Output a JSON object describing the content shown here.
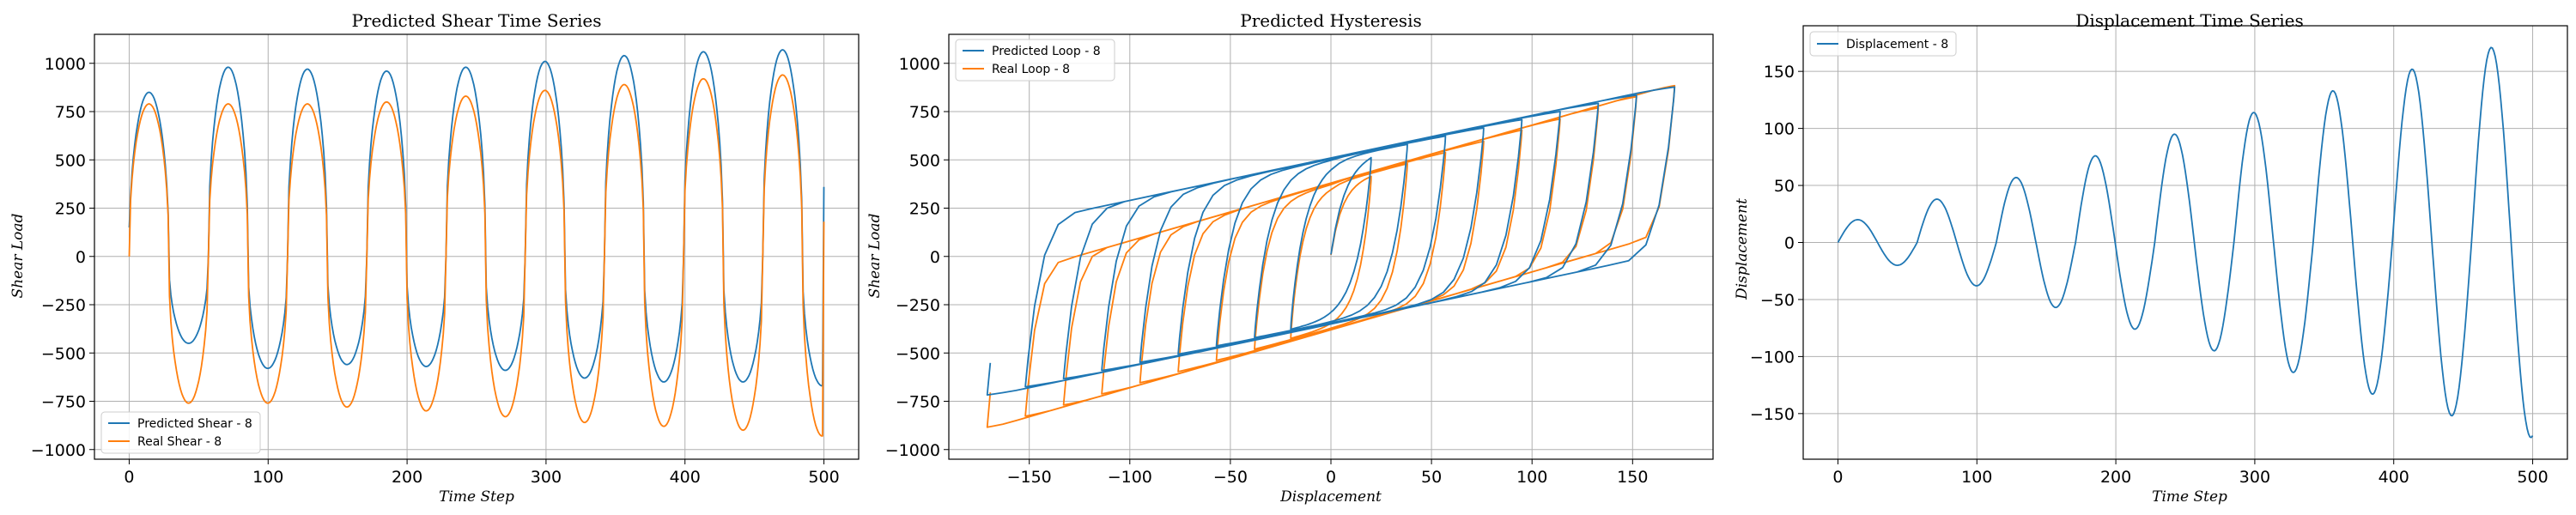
{
  "chart_data": [
    {
      "type": "line",
      "title": "Predicted Shear Time Series",
      "xlabel": "Time Step",
      "ylabel": "Shear Load",
      "xlim": [
        -25,
        525
      ],
      "ylim": [
        -1050,
        1150
      ],
      "xticks": [
        0,
        100,
        200,
        300,
        400,
        500
      ],
      "yticks": [
        -1000,
        -750,
        -500,
        -250,
        0,
        250,
        500,
        750,
        1000
      ],
      "grid": true,
      "legend_position": "lower-left",
      "series": [
        {
          "name": "Predicted Shear - 8",
          "color": "#1f77b4",
          "amplitudes": [
            850,
            980,
            970,
            960,
            980,
            1010,
            1040,
            1060,
            1070
          ],
          "troughs": [
            -450,
            -580,
            -560,
            -570,
            -590,
            -630,
            -650,
            -650,
            -670
          ],
          "start": 150,
          "end": 360
        },
        {
          "name": "Real Shear - 8",
          "color": "#ff7f0e",
          "amplitudes": [
            790,
            790,
            790,
            800,
            830,
            860,
            890,
            920,
            940
          ],
          "troughs": [
            -760,
            -760,
            -780,
            -800,
            -830,
            -860,
            -880,
            -900,
            -930
          ],
          "start": 0,
          "end": 180
        }
      ]
    },
    {
      "type": "line",
      "title": "Predicted Hysteresis",
      "xlabel": "Displacement",
      "ylabel": "Shear Load",
      "xlim": [
        -190,
        190
      ],
      "ylim": [
        -1050,
        1150
      ],
      "xticks": [
        -150,
        -100,
        -50,
        0,
        50,
        100,
        150
      ],
      "yticks": [
        -1000,
        -750,
        -500,
        -250,
        0,
        250,
        500,
        750,
        1000
      ],
      "grid": true,
      "legend_position": "top-left",
      "series": [
        {
          "name": "Predicted Loop - 8",
          "color": "#1f77b4"
        },
        {
          "name": "Real Loop - 8",
          "color": "#ff7f0e"
        }
      ]
    },
    {
      "type": "line",
      "title": "Displacement Time Series",
      "xlabel": "Time Step",
      "ylabel": "Displacement",
      "xlim": [
        -25,
        525
      ],
      "ylim": [
        -190,
        190
      ],
      "xticks": [
        0,
        100,
        200,
        300,
        400,
        500
      ],
      "yticks": [
        -150,
        -100,
        -50,
        0,
        50,
        100,
        150
      ],
      "grid": true,
      "legend_position": "top-left",
      "series": [
        {
          "name": "Displacement - 8",
          "color": "#1f77b4",
          "peaks": [
            20,
            38,
            57,
            76,
            95,
            114,
            133,
            152,
            171
          ],
          "period": 57
        }
      ]
    }
  ]
}
